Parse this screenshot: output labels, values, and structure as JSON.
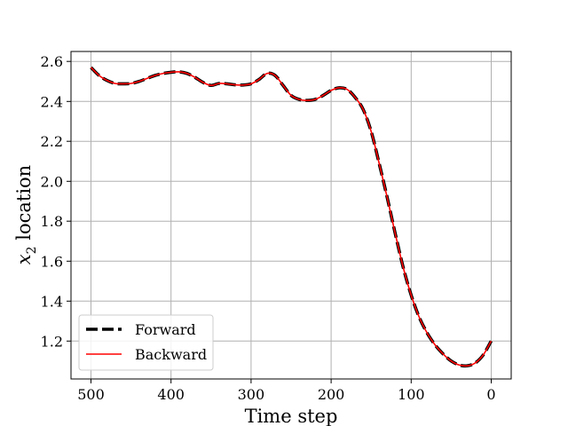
{
  "chart_data": {
    "type": "line",
    "xlabel": "Time step",
    "ylabel_var": "x",
    "ylabel_sub": "2",
    "ylabel_rest": " location",
    "xlim": [
      525,
      -25
    ],
    "ylim": [
      1.01,
      2.65
    ],
    "x_ticks": [
      500,
      400,
      300,
      200,
      100,
      0
    ],
    "y_ticks": [
      1.2,
      1.4,
      1.6,
      1.8,
      2.0,
      2.2,
      2.4,
      2.6
    ],
    "grid": true,
    "x_axis_inverted": true,
    "legend_position": "lower-left",
    "x": [
      500,
      490,
      480,
      470,
      460,
      450,
      440,
      430,
      420,
      410,
      400,
      390,
      380,
      370,
      360,
      350,
      340,
      330,
      320,
      310,
      300,
      290,
      280,
      270,
      260,
      250,
      240,
      230,
      220,
      210,
      200,
      190,
      180,
      170,
      160,
      150,
      140,
      130,
      120,
      110,
      100,
      90,
      80,
      70,
      60,
      50,
      40,
      30,
      20,
      10,
      0
    ],
    "series": [
      {
        "name": "Forward",
        "color": "#000000",
        "style": "dashed",
        "y": [
          2.57,
          2.53,
          2.505,
          2.49,
          2.488,
          2.49,
          2.5,
          2.515,
          2.53,
          2.54,
          2.546,
          2.548,
          2.54,
          2.52,
          2.495,
          2.48,
          2.49,
          2.488,
          2.483,
          2.482,
          2.488,
          2.51,
          2.54,
          2.53,
          2.48,
          2.43,
          2.41,
          2.405,
          2.41,
          2.43,
          2.455,
          2.468,
          2.46,
          2.42,
          2.36,
          2.25,
          2.09,
          1.92,
          1.74,
          1.57,
          1.43,
          1.32,
          1.24,
          1.18,
          1.135,
          1.1,
          1.08,
          1.076,
          1.09,
          1.13,
          1.2
        ]
      },
      {
        "name": "Backward",
        "color": "#ff0000",
        "style": "solid",
        "y": [
          2.57,
          2.53,
          2.505,
          2.49,
          2.488,
          2.49,
          2.5,
          2.515,
          2.53,
          2.54,
          2.546,
          2.548,
          2.54,
          2.52,
          2.495,
          2.48,
          2.49,
          2.488,
          2.483,
          2.482,
          2.488,
          2.51,
          2.54,
          2.53,
          2.48,
          2.43,
          2.41,
          2.405,
          2.41,
          2.43,
          2.455,
          2.468,
          2.46,
          2.42,
          2.36,
          2.25,
          2.09,
          1.92,
          1.74,
          1.57,
          1.43,
          1.32,
          1.24,
          1.18,
          1.135,
          1.1,
          1.08,
          1.076,
          1.09,
          1.13,
          1.2
        ]
      }
    ]
  }
}
